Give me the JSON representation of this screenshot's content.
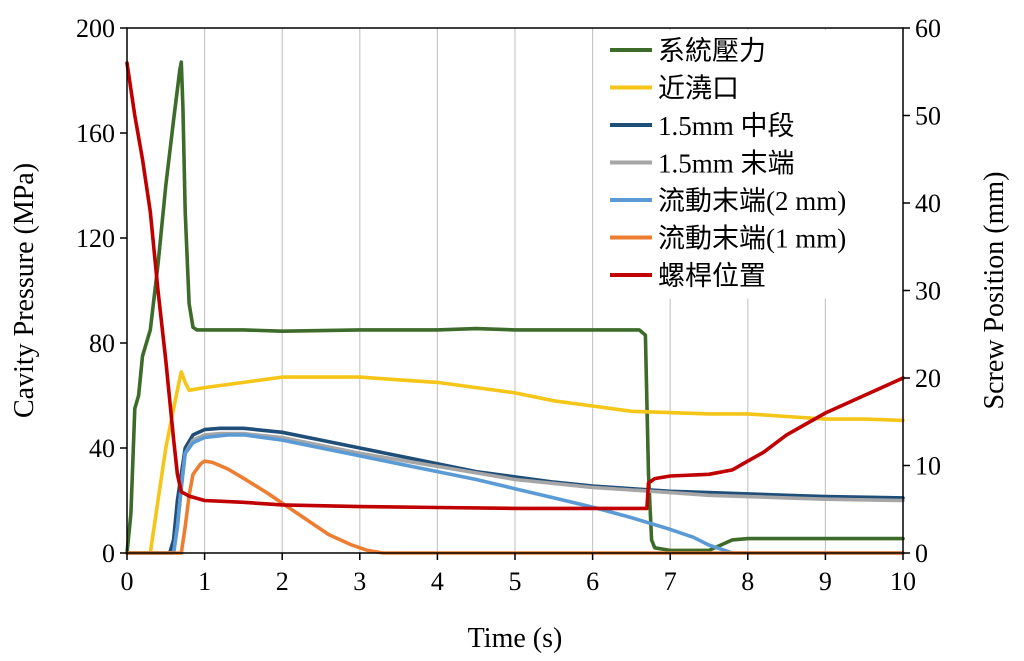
{
  "chart_data": {
    "type": "line",
    "xlabel": "Time (s)",
    "ylabel": "Cavity Pressure (MPa)",
    "y2label": "Screw Position (mm)",
    "xlim": [
      0,
      10
    ],
    "ylim": [
      0,
      200
    ],
    "y2lim": [
      0,
      60
    ],
    "x_ticks": [
      "0",
      "1",
      "2",
      "3",
      "4",
      "5",
      "6",
      "7",
      "8",
      "9",
      "10"
    ],
    "y_ticks": [
      "0",
      "40",
      "80",
      "120",
      "160",
      "200"
    ],
    "y2_ticks": [
      "0",
      "10",
      "20",
      "30",
      "40",
      "50",
      "60"
    ],
    "grid": "vertical",
    "legend_position": "top-right",
    "series": [
      {
        "name": "系統壓力",
        "axis": "left",
        "color": "#3d6b2a",
        "points": [
          [
            0,
            0
          ],
          [
            0.05,
            15
          ],
          [
            0.1,
            55
          ],
          [
            0.15,
            60
          ],
          [
            0.2,
            75
          ],
          [
            0.25,
            80
          ],
          [
            0.3,
            85
          ],
          [
            0.4,
            110
          ],
          [
            0.5,
            140
          ],
          [
            0.6,
            165
          ],
          [
            0.68,
            184
          ],
          [
            0.7,
            187
          ],
          [
            0.72,
            170
          ],
          [
            0.75,
            130
          ],
          [
            0.8,
            95
          ],
          [
            0.85,
            86
          ],
          [
            0.9,
            85
          ],
          [
            1.2,
            85
          ],
          [
            1.5,
            85
          ],
          [
            2,
            84.5
          ],
          [
            3,
            85
          ],
          [
            4,
            85
          ],
          [
            4.5,
            85.5
          ],
          [
            5,
            85
          ],
          [
            6,
            85
          ],
          [
            6.6,
            85
          ],
          [
            6.68,
            83
          ],
          [
            6.72,
            30
          ],
          [
            6.76,
            5
          ],
          [
            6.8,
            2
          ],
          [
            7.0,
            1
          ],
          [
            7.5,
            1
          ],
          [
            7.8,
            5
          ],
          [
            8,
            5.5
          ],
          [
            8.5,
            5.5
          ],
          [
            9,
            5.5
          ],
          [
            10,
            5.5
          ]
        ]
      },
      {
        "name": "近澆口",
        "axis": "left",
        "color": "#f5c518",
        "points": [
          [
            0,
            0
          ],
          [
            0.3,
            0
          ],
          [
            0.4,
            20
          ],
          [
            0.5,
            40
          ],
          [
            0.6,
            55
          ],
          [
            0.67,
            65
          ],
          [
            0.7,
            69
          ],
          [
            0.75,
            65
          ],
          [
            0.8,
            62
          ],
          [
            1,
            63
          ],
          [
            1.5,
            65
          ],
          [
            2,
            67
          ],
          [
            2.5,
            67
          ],
          [
            3,
            67
          ],
          [
            3.5,
            66
          ],
          [
            4,
            65
          ],
          [
            4.5,
            63
          ],
          [
            5,
            61
          ],
          [
            5.5,
            58
          ],
          [
            6,
            56
          ],
          [
            6.5,
            54
          ],
          [
            7,
            53.5
          ],
          [
            7.5,
            53
          ],
          [
            8,
            53
          ],
          [
            8.5,
            52
          ],
          [
            9,
            51
          ],
          [
            9.5,
            51
          ],
          [
            10,
            50.5
          ]
        ]
      },
      {
        "name": "1.5mm 中段",
        "axis": "left",
        "color": "#1f4e79",
        "points": [
          [
            0,
            0
          ],
          [
            0.55,
            0
          ],
          [
            0.6,
            5
          ],
          [
            0.65,
            20
          ],
          [
            0.7,
            30
          ],
          [
            0.75,
            40
          ],
          [
            0.85,
            45
          ],
          [
            1,
            47
          ],
          [
            1.2,
            47.5
          ],
          [
            1.5,
            47.5
          ],
          [
            2,
            46
          ],
          [
            2.5,
            43
          ],
          [
            3,
            40
          ],
          [
            3.5,
            37
          ],
          [
            4,
            34
          ],
          [
            4.5,
            31
          ],
          [
            5,
            29
          ],
          [
            5.5,
            27
          ],
          [
            6,
            25.5
          ],
          [
            6.5,
            24.5
          ],
          [
            7,
            23.5
          ],
          [
            7.5,
            23
          ],
          [
            8,
            22.5
          ],
          [
            8.5,
            22
          ],
          [
            9,
            21.5
          ],
          [
            10,
            21
          ]
        ]
      },
      {
        "name": "1.5mm 末端",
        "axis": "left",
        "color": "#a6a6a6",
        "points": [
          [
            0,
            0
          ],
          [
            0.6,
            0
          ],
          [
            0.65,
            10
          ],
          [
            0.7,
            25
          ],
          [
            0.75,
            38
          ],
          [
            0.85,
            43
          ],
          [
            1,
            45
          ],
          [
            1.2,
            45.5
          ],
          [
            1.5,
            45.5
          ],
          [
            2,
            44
          ],
          [
            2.5,
            41
          ],
          [
            3,
            38
          ],
          [
            3.5,
            35.5
          ],
          [
            4,
            33
          ],
          [
            4.5,
            30.5
          ],
          [
            5,
            28
          ],
          [
            5.5,
            26.5
          ],
          [
            6,
            25
          ],
          [
            6.5,
            24
          ],
          [
            7,
            23
          ],
          [
            7.5,
            22
          ],
          [
            8,
            21.5
          ],
          [
            8.5,
            21
          ],
          [
            9,
            20.5
          ],
          [
            10,
            20
          ]
        ]
      },
      {
        "name": "流動末端(2 mm)",
        "axis": "left",
        "color": "#5b9bd5",
        "points": [
          [
            0,
            0
          ],
          [
            0.6,
            0
          ],
          [
            0.65,
            10
          ],
          [
            0.7,
            25
          ],
          [
            0.75,
            38
          ],
          [
            0.85,
            42
          ],
          [
            1,
            44
          ],
          [
            1.3,
            45
          ],
          [
            1.5,
            45
          ],
          [
            2,
            43
          ],
          [
            2.5,
            40
          ],
          [
            3,
            37
          ],
          [
            3.5,
            34
          ],
          [
            4,
            31
          ],
          [
            4.5,
            28
          ],
          [
            5,
            24.5
          ],
          [
            5.5,
            21
          ],
          [
            6,
            17.5
          ],
          [
            6.5,
            13.5
          ],
          [
            7,
            9
          ],
          [
            7.3,
            6
          ],
          [
            7.5,
            3
          ],
          [
            7.8,
            0
          ],
          [
            10,
            0
          ]
        ]
      },
      {
        "name": "流動末端(1 mm)",
        "axis": "left",
        "color": "#ed7d31",
        "points": [
          [
            0,
            0
          ],
          [
            0.7,
            0
          ],
          [
            0.75,
            10
          ],
          [
            0.8,
            22
          ],
          [
            0.85,
            30
          ],
          [
            0.95,
            34
          ],
          [
            1,
            35
          ],
          [
            1.1,
            34.5
          ],
          [
            1.3,
            32
          ],
          [
            1.5,
            28.5
          ],
          [
            1.8,
            23
          ],
          [
            2,
            19
          ],
          [
            2.3,
            13
          ],
          [
            2.6,
            7
          ],
          [
            2.9,
            3
          ],
          [
            3.1,
            1
          ],
          [
            3.3,
            0
          ],
          [
            10,
            0
          ]
        ]
      },
      {
        "name": "螺桿位置",
        "axis": "right",
        "color": "#c00000",
        "points": [
          [
            0,
            56
          ],
          [
            0.05,
            53
          ],
          [
            0.1,
            50
          ],
          [
            0.2,
            45
          ],
          [
            0.3,
            39
          ],
          [
            0.4,
            30
          ],
          [
            0.5,
            22
          ],
          [
            0.6,
            13
          ],
          [
            0.65,
            9
          ],
          [
            0.7,
            7
          ],
          [
            0.8,
            6.5
          ],
          [
            1,
            6
          ],
          [
            1.5,
            5.8
          ],
          [
            2,
            5.5
          ],
          [
            3,
            5.3
          ],
          [
            4,
            5.2
          ],
          [
            5,
            5.1
          ],
          [
            6,
            5.1
          ],
          [
            6.7,
            5.1
          ],
          [
            6.72,
            8
          ],
          [
            6.8,
            8.5
          ],
          [
            7,
            8.8
          ],
          [
            7.5,
            9
          ],
          [
            7.8,
            9.5
          ],
          [
            8,
            10.5
          ],
          [
            8.2,
            11.5
          ],
          [
            8.5,
            13.5
          ],
          [
            9,
            16
          ],
          [
            9.5,
            18
          ],
          [
            10,
            20
          ]
        ]
      }
    ]
  }
}
